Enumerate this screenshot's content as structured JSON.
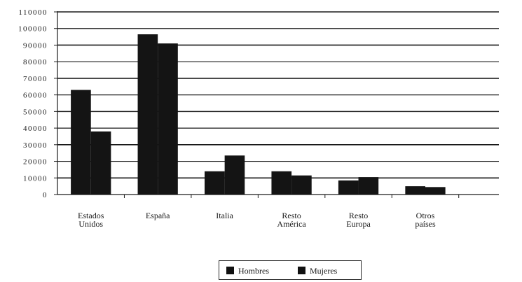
{
  "chart_data": {
    "type": "bar",
    "categories": [
      [
        "Estados",
        "Unidos"
      ],
      [
        "España"
      ],
      [
        "Italia"
      ],
      [
        "Resto",
        "América"
      ],
      [
        "Resto",
        "Europa"
      ],
      [
        "Otros",
        "países"
      ]
    ],
    "series": [
      {
        "name": "Hombres",
        "values": [
          63000,
          96500,
          14000,
          14000,
          8500,
          5000
        ]
      },
      {
        "name": "Mujeres",
        "values": [
          38000,
          91000,
          23500,
          11500,
          10500,
          4500
        ]
      }
    ],
    "yticks": [
      "0",
      "10000",
      "20000",
      "30000",
      "40000",
      "50000",
      "60000",
      "70000",
      "80000",
      "90000",
      "100000",
      "110000"
    ],
    "ylim": [
      0,
      110000
    ],
    "grid": true,
    "legend_position": "bottom",
    "colors": {
      "bars": "#141414",
      "grid": "#1a1a1a"
    }
  },
  "legend": {
    "items": [
      "Hombres",
      "Mujeres"
    ]
  }
}
